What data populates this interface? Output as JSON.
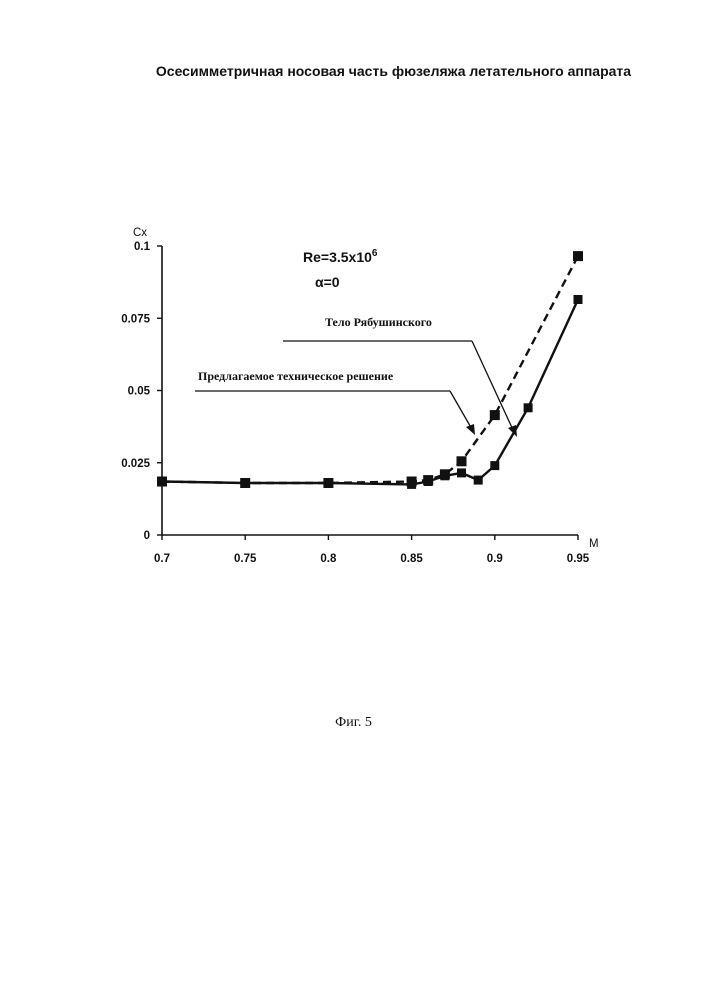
{
  "title": "Осесимметричная носовая часть фюзеляжа летательного аппарата",
  "caption": "Фиг. 5",
  "chart_data": {
    "type": "line",
    "xlabel": "M",
    "ylabel": "Cx",
    "xlim": [
      0.7,
      0.95
    ],
    "ylim": [
      0,
      0.1
    ],
    "x_ticks": [
      0.7,
      0.75,
      0.8,
      0.85,
      0.9,
      0.95
    ],
    "x_tick_labels": [
      "0.7",
      "0.75",
      "0.8",
      "0.85",
      "0.9",
      "0.95"
    ],
    "y_ticks": [
      0,
      0.025,
      0.05,
      0.075,
      0.1
    ],
    "y_tick_labels": [
      "0",
      "0.025",
      "0.05",
      "0.075",
      "0.1"
    ],
    "grid": false,
    "conditions": {
      "re_prefix": "Re=3.5x10",
      "re_exponent": "6",
      "alpha": "α=0"
    },
    "series": [
      {
        "name": "Тело Рябушинского",
        "line_style": "dashed",
        "x": [
          0.7,
          0.75,
          0.8,
          0.85,
          0.86,
          0.87,
          0.88,
          0.9,
          0.95
        ],
        "y": [
          0.0185,
          0.018,
          0.018,
          0.0185,
          0.019,
          0.021,
          0.0255,
          0.0415,
          0.0965
        ]
      },
      {
        "name": "Предлагаемое техническое решение",
        "line_style": "solid",
        "x": [
          0.7,
          0.75,
          0.8,
          0.85,
          0.86,
          0.87,
          0.88,
          0.89,
          0.9,
          0.92,
          0.95
        ],
        "y": [
          0.0185,
          0.018,
          0.018,
          0.0175,
          0.0185,
          0.0205,
          0.0215,
          0.019,
          0.024,
          0.044,
          0.0815
        ]
      }
    ]
  }
}
